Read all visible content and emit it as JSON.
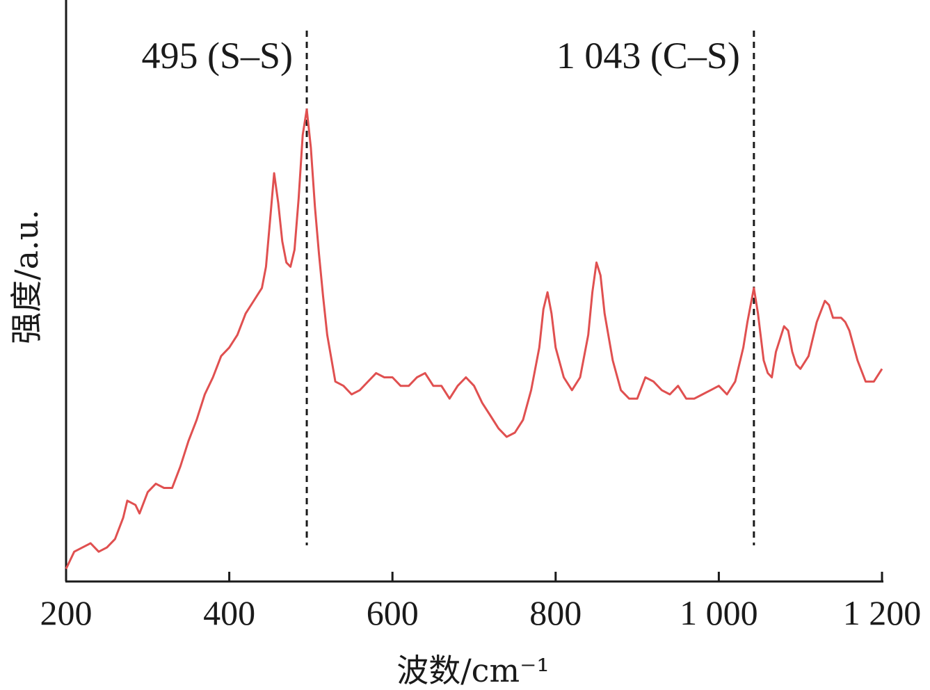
{
  "chart_data": {
    "type": "line",
    "title": "",
    "xlabel": "波数/cm⁻¹",
    "ylabel": "强度/a.u.",
    "xlim": [
      200,
      1200
    ],
    "ylim": [
      0,
      1
    ],
    "y_ticks_shown": false,
    "grid": false,
    "x_ticks": [
      200,
      400,
      600,
      800,
      1000,
      1200
    ],
    "x_tick_labels": [
      "200",
      "400",
      "600",
      "800",
      "1 000",
      "1 200"
    ],
    "annotations": [
      {
        "x": 495,
        "label": "495 (S–S)"
      },
      {
        "x": 1043,
        "label": "1 043 (C–S)"
      }
    ],
    "series": [
      {
        "color": "#e05050",
        "x": [
          200,
          205,
          210,
          220,
          230,
          240,
          250,
          260,
          270,
          275,
          285,
          290,
          300,
          310,
          320,
          330,
          340,
          350,
          360,
          370,
          380,
          390,
          400,
          410,
          420,
          430,
          440,
          445,
          450,
          455,
          460,
          465,
          470,
          475,
          480,
          485,
          490,
          495,
          500,
          505,
          510,
          515,
          520,
          530,
          540,
          550,
          560,
          570,
          580,
          590,
          600,
          610,
          620,
          630,
          640,
          650,
          660,
          670,
          680,
          690,
          700,
          710,
          720,
          730,
          740,
          750,
          760,
          770,
          780,
          785,
          790,
          795,
          800,
          810,
          820,
          830,
          840,
          845,
          850,
          855,
          860,
          870,
          880,
          890,
          900,
          910,
          920,
          930,
          940,
          950,
          960,
          970,
          980,
          990,
          1000,
          1010,
          1020,
          1030,
          1035,
          1040,
          1043,
          1048,
          1055,
          1060,
          1065,
          1070,
          1080,
          1085,
          1090,
          1095,
          1100,
          1110,
          1120,
          1130,
          1135,
          1140,
          1150,
          1155,
          1160,
          1170,
          1180,
          1190,
          1200
        ],
        "y": [
          0.03,
          0.05,
          0.07,
          0.08,
          0.09,
          0.07,
          0.08,
          0.1,
          0.15,
          0.19,
          0.18,
          0.16,
          0.21,
          0.23,
          0.22,
          0.22,
          0.27,
          0.33,
          0.38,
          0.44,
          0.48,
          0.53,
          0.55,
          0.58,
          0.63,
          0.66,
          0.69,
          0.74,
          0.85,
          0.96,
          0.89,
          0.8,
          0.75,
          0.74,
          0.78,
          0.9,
          1.05,
          1.11,
          1.02,
          0.88,
          0.77,
          0.67,
          0.58,
          0.47,
          0.46,
          0.44,
          0.45,
          0.47,
          0.49,
          0.48,
          0.48,
          0.46,
          0.46,
          0.48,
          0.49,
          0.46,
          0.46,
          0.43,
          0.46,
          0.48,
          0.46,
          0.42,
          0.39,
          0.36,
          0.34,
          0.35,
          0.38,
          0.45,
          0.55,
          0.64,
          0.68,
          0.63,
          0.55,
          0.48,
          0.45,
          0.48,
          0.58,
          0.68,
          0.75,
          0.72,
          0.63,
          0.52,
          0.45,
          0.43,
          0.43,
          0.48,
          0.47,
          0.45,
          0.44,
          0.46,
          0.43,
          0.43,
          0.44,
          0.45,
          0.46,
          0.44,
          0.47,
          0.55,
          0.61,
          0.66,
          0.69,
          0.63,
          0.52,
          0.49,
          0.48,
          0.54,
          0.6,
          0.59,
          0.54,
          0.51,
          0.5,
          0.53,
          0.61,
          0.66,
          0.65,
          0.62,
          0.62,
          0.61,
          0.59,
          0.52,
          0.47,
          0.47,
          0.5
        ]
      }
    ]
  }
}
